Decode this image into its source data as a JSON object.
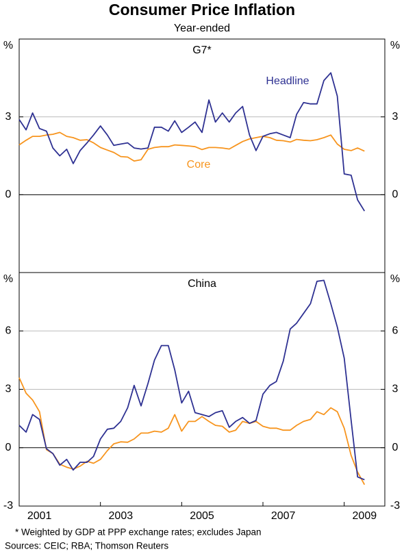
{
  "header": {
    "title": "Consumer Price Inflation",
    "subtitle": "Year-ended"
  },
  "chart_data": [
    {
      "type": "line",
      "title": "G7*",
      "y_unit": "%",
      "x": [
        2001,
        2001.17,
        2001.33,
        2001.5,
        2001.67,
        2001.83,
        2002,
        2002.17,
        2002.33,
        2002.5,
        2002.67,
        2002.83,
        2003,
        2003.17,
        2003.33,
        2003.5,
        2003.67,
        2003.83,
        2004,
        2004.17,
        2004.33,
        2004.5,
        2004.67,
        2004.83,
        2005,
        2005.17,
        2005.33,
        2005.5,
        2005.67,
        2005.83,
        2006,
        2006.17,
        2006.33,
        2006.5,
        2006.67,
        2006.83,
        2007,
        2007.17,
        2007.33,
        2007.5,
        2007.67,
        2007.83,
        2008,
        2008.17,
        2008.33,
        2008.5,
        2008.67,
        2008.83,
        2009,
        2009.17,
        2009.33,
        2009.5
      ],
      "xlim": [
        2001,
        2010
      ],
      "ylim": [
        -3,
        6
      ],
      "yticks": [
        0,
        3
      ],
      "series": [
        {
          "name": "Headline",
          "color": "#2e3192",
          "values": [
            2.9,
            2.5,
            3.15,
            2.55,
            2.45,
            1.8,
            1.5,
            1.75,
            1.2,
            1.7,
            2.0,
            2.3,
            2.65,
            2.3,
            1.9,
            1.95,
            2.0,
            1.8,
            1.76,
            1.8,
            2.6,
            2.6,
            2.45,
            2.85,
            2.4,
            2.6,
            2.8,
            2.4,
            3.65,
            2.8,
            3.15,
            2.8,
            3.15,
            3.4,
            2.3,
            1.7,
            2.25,
            2.35,
            2.4,
            2.3,
            2.2,
            3.1,
            3.55,
            3.5,
            3.5,
            4.4,
            4.7,
            3.8,
            0.8,
            0.75,
            -0.2,
            -0.63
          ]
        },
        {
          "name": "Core",
          "color": "#f7941d",
          "values": [
            1.92,
            2.1,
            2.25,
            2.25,
            2.3,
            2.33,
            2.4,
            2.25,
            2.2,
            2.1,
            2.12,
            2.0,
            1.82,
            1.72,
            1.63,
            1.47,
            1.45,
            1.3,
            1.35,
            1.75,
            1.82,
            1.85,
            1.85,
            1.92,
            1.9,
            1.88,
            1.85,
            1.74,
            1.82,
            1.82,
            1.8,
            1.76,
            1.9,
            2.05,
            2.15,
            2.2,
            2.25,
            2.2,
            2.1,
            2.08,
            2.03,
            2.13,
            2.1,
            2.08,
            2.12,
            2.2,
            2.3,
            1.95,
            1.75,
            1.7,
            1.8,
            1.68
          ]
        }
      ]
    },
    {
      "type": "line",
      "title": "China",
      "y_unit": "%",
      "x": [
        2001,
        2001.17,
        2001.33,
        2001.5,
        2001.67,
        2001.83,
        2002,
        2002.17,
        2002.33,
        2002.5,
        2002.67,
        2002.83,
        2003,
        2003.17,
        2003.33,
        2003.5,
        2003.67,
        2003.83,
        2004,
        2004.17,
        2004.33,
        2004.5,
        2004.67,
        2004.83,
        2005,
        2005.17,
        2005.33,
        2005.5,
        2005.67,
        2005.83,
        2006,
        2006.17,
        2006.33,
        2006.5,
        2006.67,
        2006.83,
        2007,
        2007.17,
        2007.33,
        2007.5,
        2007.67,
        2007.83,
        2008,
        2008.17,
        2008.33,
        2008.5,
        2008.67,
        2008.83,
        2009,
        2009.17,
        2009.33,
        2009.5
      ],
      "xlim": [
        2001,
        2010
      ],
      "xticks": [
        2001,
        2003,
        2005,
        2007,
        2009
      ],
      "ylim": [
        -3,
        9
      ],
      "yticks": [
        -3,
        0,
        3,
        6
      ],
      "series": [
        {
          "name": "Headline",
          "color": "#2e3192",
          "values": [
            1.15,
            0.8,
            1.7,
            1.45,
            -0.05,
            -0.3,
            -0.9,
            -0.6,
            -1.15,
            -0.75,
            -0.75,
            -0.45,
            0.45,
            0.95,
            1.0,
            1.35,
            2.05,
            3.2,
            2.15,
            3.3,
            4.5,
            5.25,
            5.25,
            4.0,
            2.3,
            2.9,
            1.8,
            1.7,
            1.6,
            1.8,
            1.9,
            1.05,
            1.35,
            1.55,
            1.25,
            1.4,
            2.75,
            3.2,
            3.4,
            4.45,
            6.1,
            6.4,
            6.9,
            7.4,
            8.55,
            8.6,
            7.4,
            6.2,
            4.6,
            1.4,
            -1.5,
            -1.65
          ]
        },
        {
          "name": "Core",
          "color": "#f7941d",
          "values": [
            3.6,
            2.8,
            2.45,
            1.85,
            -0.1,
            -0.3,
            -0.85,
            -1.0,
            -1.1,
            -0.95,
            -0.7,
            -0.8,
            -0.6,
            -0.15,
            0.2,
            0.3,
            0.28,
            0.45,
            0.75,
            0.75,
            0.85,
            0.8,
            1.0,
            1.7,
            0.85,
            1.35,
            1.35,
            1.6,
            1.35,
            1.15,
            1.1,
            0.8,
            0.9,
            1.35,
            1.25,
            1.35,
            1.1,
            1.0,
            1.0,
            0.9,
            0.9,
            1.15,
            1.35,
            1.45,
            1.85,
            1.7,
            2.05,
            1.85,
            1.0,
            -0.4,
            -1.25,
            -1.9
          ]
        }
      ]
    }
  ],
  "notes": [
    "*    Weighted by GDP at PPP exchange rates; excludes Japan",
    "Sources: CEIC; RBA; Thomson Reuters"
  ]
}
